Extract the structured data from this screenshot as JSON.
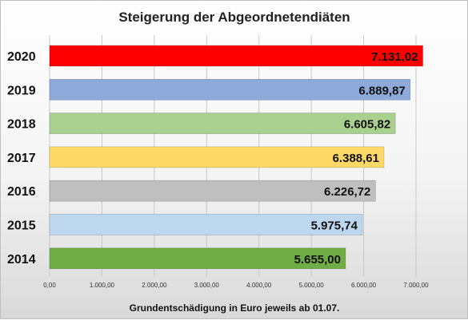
{
  "chart_data": {
    "type": "bar",
    "orientation": "horizontal",
    "title": "Steigerung der Abgeordnetendiäten",
    "xlabel": "Grundentschädigung in Euro jeweils ab 01.07.",
    "categories": [
      "2020",
      "2019",
      "2018",
      "2017",
      "2016",
      "2015",
      "2014"
    ],
    "values": [
      7131.02,
      6889.87,
      6605.82,
      6388.61,
      6226.72,
      5975.74,
      5655.0
    ],
    "value_labels": [
      "7.131,02",
      "6.889,87",
      "6.605,82",
      "6.388,61",
      "6.226,72",
      "5.975,74",
      "5.655,00"
    ],
    "bar_colors": [
      "#ff0000",
      "#8eaadb",
      "#a9d08e",
      "#ffd966",
      "#bfbfbf",
      "#bdd7ee",
      "#70ad47"
    ],
    "xlim": [
      0,
      7000
    ],
    "xticks": [
      0,
      1000,
      2000,
      3000,
      4000,
      5000,
      6000,
      7000
    ],
    "xtick_labels": [
      "0,00",
      "1.000,00",
      "2.000,00",
      "3.000,00",
      "4.000,00",
      "5.000,00",
      "6.000,00",
      "7.000,00"
    ],
    "grid": true,
    "legend": "none"
  }
}
